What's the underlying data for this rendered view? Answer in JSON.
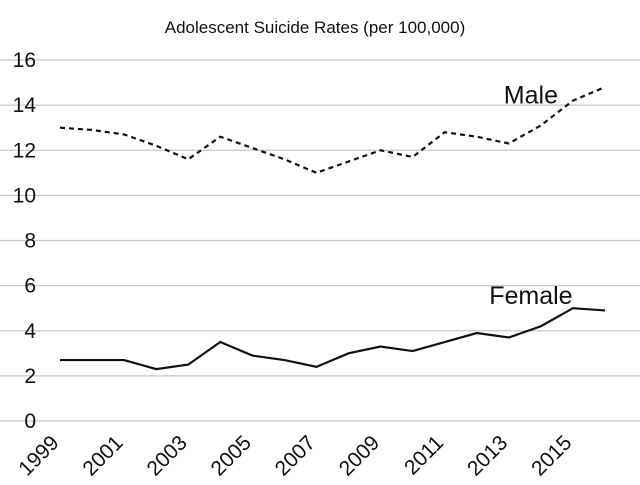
{
  "chart_data": {
    "type": "line",
    "title": "Adolescent Suicide Rates (per 100,000)",
    "xlabel": "",
    "ylabel": "",
    "ylim": [
      0,
      16
    ],
    "yticks": [
      0,
      2,
      4,
      6,
      8,
      10,
      12,
      14,
      16
    ],
    "xlim": [
      1999,
      2016
    ],
    "xticks": [
      "1999",
      "2001",
      "2003",
      "2005",
      "2007",
      "2009",
      "2011",
      "2013",
      "2015"
    ],
    "grid": true,
    "x": [
      1999,
      2000,
      2001,
      2002,
      2003,
      2004,
      2005,
      2006,
      2007,
      2008,
      2009,
      2010,
      2011,
      2012,
      2013,
      2014,
      2015,
      2016
    ],
    "series": [
      {
        "name": "Male",
        "style": "dashed",
        "values": [
          13.0,
          12.9,
          12.7,
          12.2,
          11.6,
          12.6,
          12.1,
          11.6,
          11.0,
          11.5,
          12.0,
          11.7,
          12.8,
          12.6,
          12.3,
          13.1,
          14.2,
          14.8
        ]
      },
      {
        "name": "Female",
        "style": "solid",
        "values": [
          2.7,
          2.7,
          2.7,
          2.3,
          2.5,
          3.5,
          2.9,
          2.7,
          2.4,
          3.0,
          3.3,
          3.1,
          3.5,
          3.9,
          3.7,
          4.2,
          5.0,
          4.9
        ]
      }
    ]
  }
}
